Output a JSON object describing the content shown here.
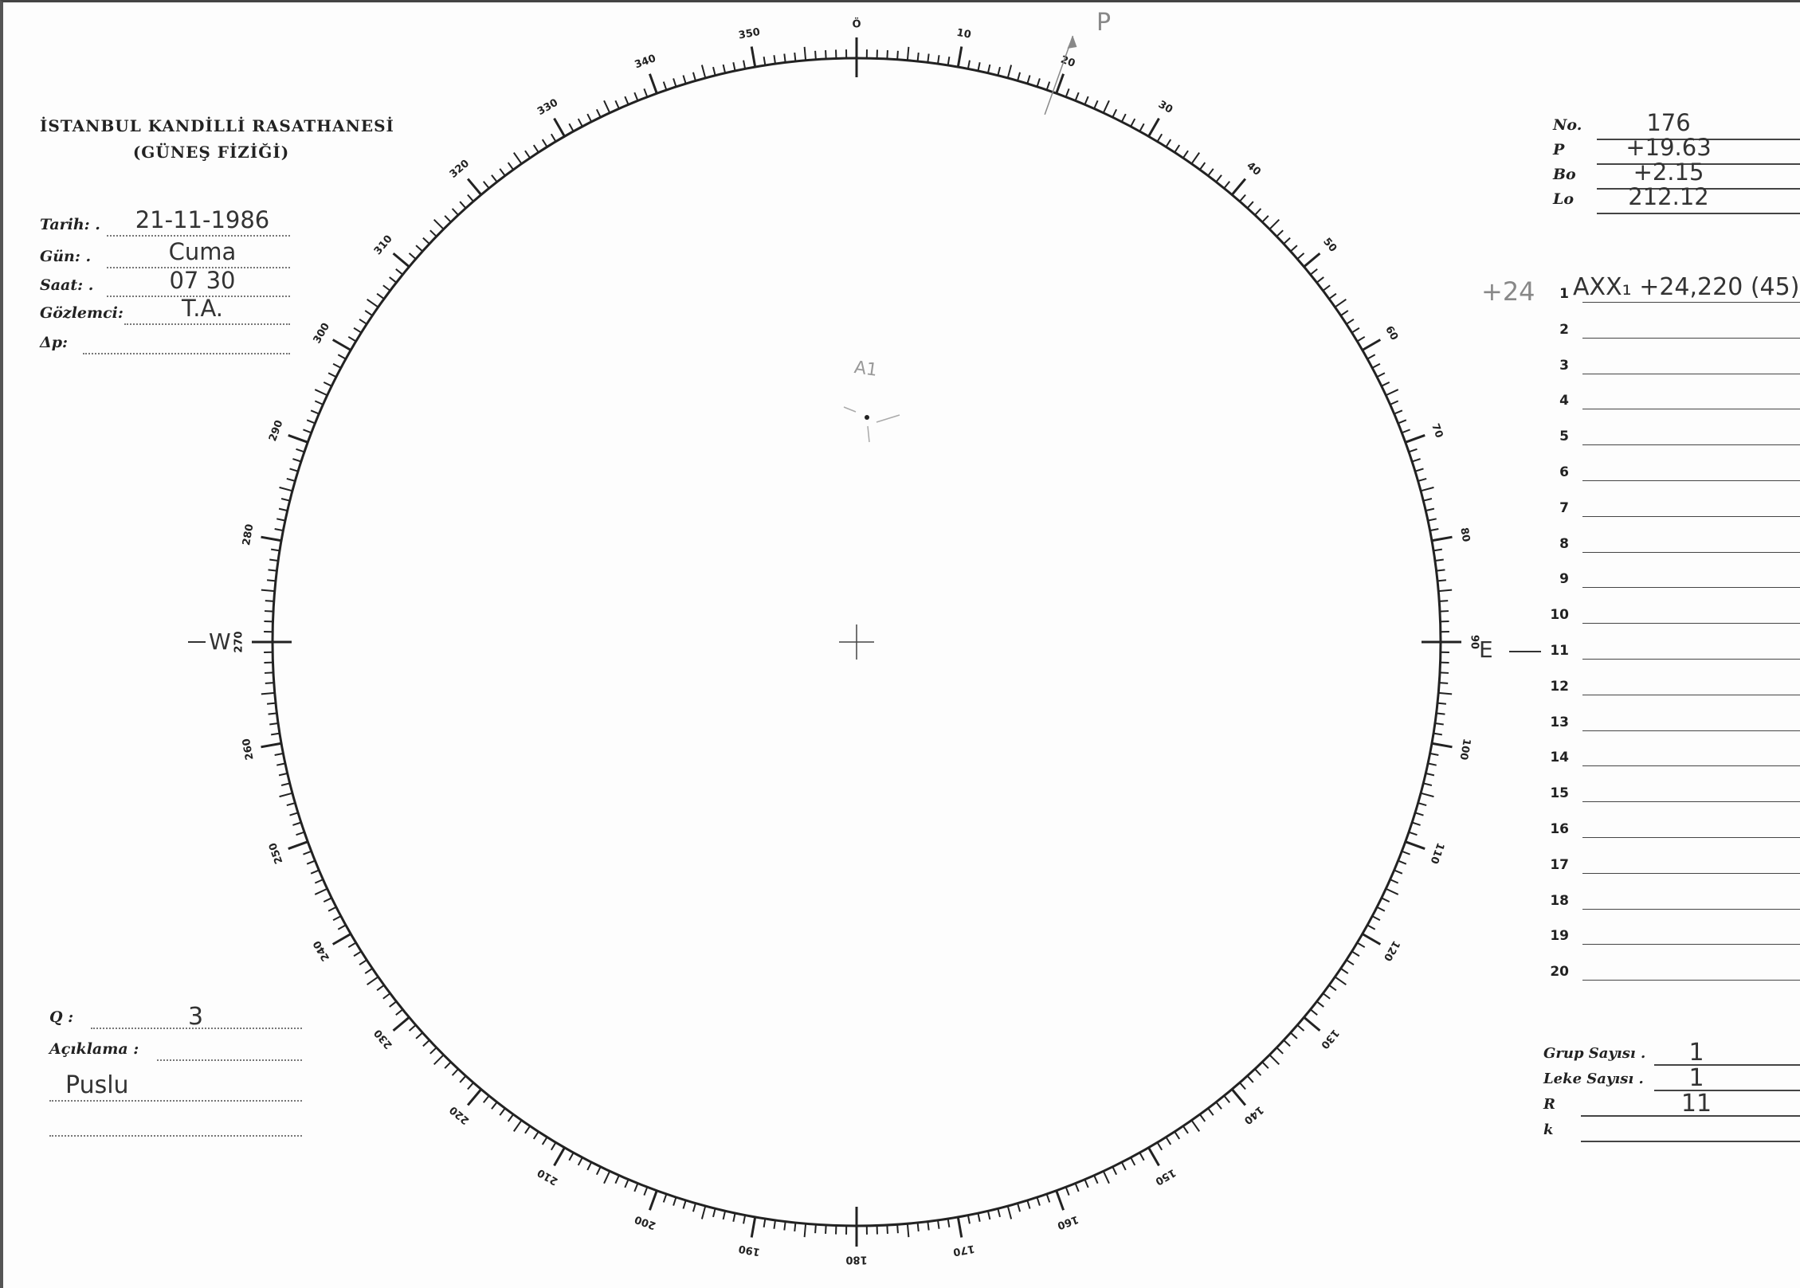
{
  "header": {
    "institution": "İSTANBUL KANDİLLİ RASATHANESİ",
    "department": "(GÜNEŞ FİZİĞİ)"
  },
  "left_fields": [
    {
      "label": "Tarih: .",
      "value": "21-11-1986"
    },
    {
      "label": "Gün: .",
      "value": "Cuma"
    },
    {
      "label": "Saat: .",
      "value": "07 30"
    },
    {
      "label": "Gözlemci:",
      "value": "T.A."
    },
    {
      "label": "Δp:",
      "value": ""
    }
  ],
  "quality": {
    "label": "Q :",
    "value": "3"
  },
  "remarks": {
    "label": "Açıklama :",
    "value": "Puslu"
  },
  "params": [
    {
      "label": "No.",
      "value": "176"
    },
    {
      "label": "P",
      "value": "+19.63"
    },
    {
      "label": "Bo",
      "value": "+2.15"
    },
    {
      "label": "Lo",
      "value": "212.12"
    }
  ],
  "groups": {
    "margin_note": "+24",
    "rows": [
      {
        "n": "1",
        "value": "AXX₁ +24,220 (45)"
      },
      {
        "n": "2",
        "value": ""
      },
      {
        "n": "3",
        "value": ""
      },
      {
        "n": "4",
        "value": ""
      },
      {
        "n": "5",
        "value": ""
      },
      {
        "n": "6",
        "value": ""
      },
      {
        "n": "7",
        "value": ""
      },
      {
        "n": "8",
        "value": ""
      },
      {
        "n": "9",
        "value": ""
      },
      {
        "n": "10",
        "value": ""
      },
      {
        "n": "11",
        "value": ""
      },
      {
        "n": "12",
        "value": ""
      },
      {
        "n": "13",
        "value": ""
      },
      {
        "n": "14",
        "value": ""
      },
      {
        "n": "15",
        "value": ""
      },
      {
        "n": "16",
        "value": ""
      },
      {
        "n": "17",
        "value": ""
      },
      {
        "n": "18",
        "value": ""
      },
      {
        "n": "19",
        "value": ""
      },
      {
        "n": "20",
        "value": ""
      }
    ]
  },
  "counts": [
    {
      "label": "Grup Sayısı .",
      "value": "1"
    },
    {
      "label": "Leke Sayısı .",
      "value": "1"
    },
    {
      "label": "R",
      "value": "11"
    },
    {
      "label": "k",
      "value": ""
    }
  ],
  "dial": {
    "labels": [
      "Ö",
      "10",
      "20",
      "30",
      "40",
      "50",
      "60",
      "70",
      "80",
      "90",
      "100",
      "110",
      "120",
      "130",
      "140",
      "150",
      "160",
      "170",
      "180",
      "190",
      "200",
      "210",
      "220",
      "230",
      "240",
      "250",
      "260",
      "270",
      "280",
      "290",
      "300",
      "310",
      "320",
      "330",
      "340",
      "350"
    ],
    "west": "W",
    "east": "E",
    "pole_mark": "P",
    "pole_angle_deg": 19.63,
    "sunspot_label": "A1"
  }
}
